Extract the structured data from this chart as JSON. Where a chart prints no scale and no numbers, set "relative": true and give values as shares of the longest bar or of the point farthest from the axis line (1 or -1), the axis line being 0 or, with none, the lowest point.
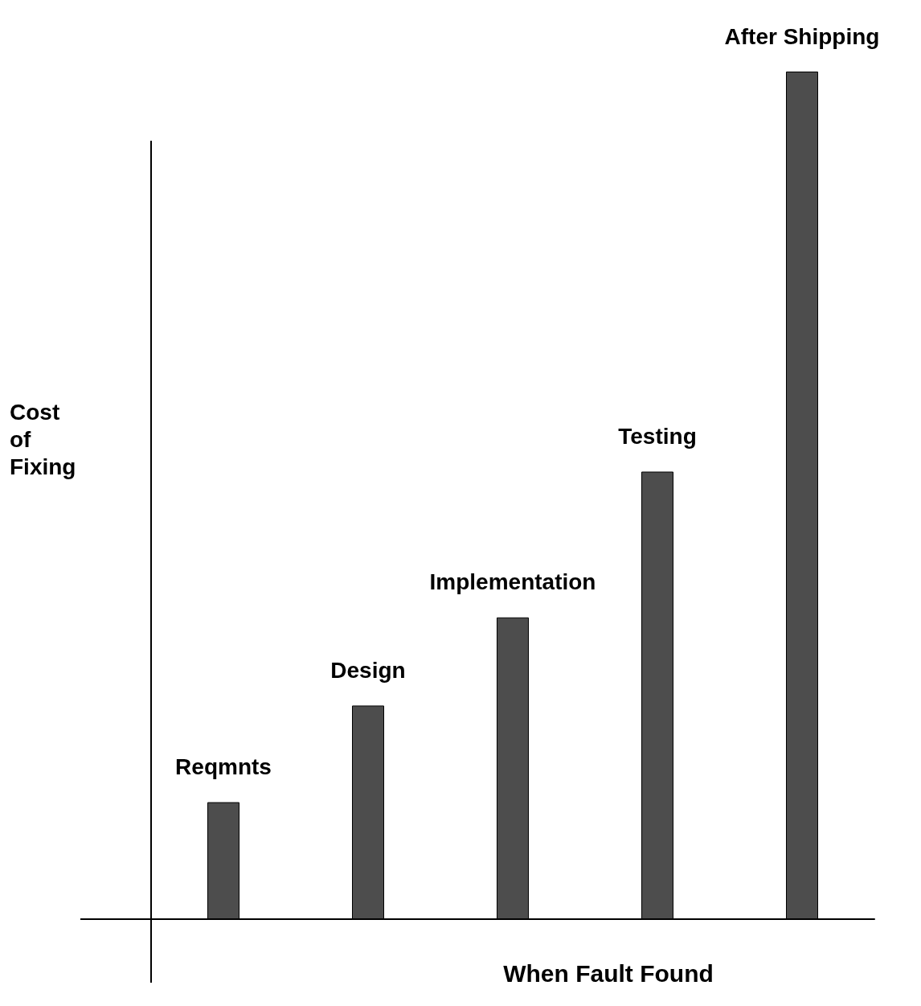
{
  "chart_data": {
    "type": "bar",
    "relative": true,
    "xlabel": "When Fault Found",
    "ylabel": "Cost of Fixing",
    "categories": [
      "Reqmnts",
      "Design",
      "Implementation",
      "Testing",
      "After Shipping"
    ],
    "values": [
      0.138,
      0.252,
      0.356,
      0.528,
      1
    ],
    "color": "#4d4d4d"
  }
}
